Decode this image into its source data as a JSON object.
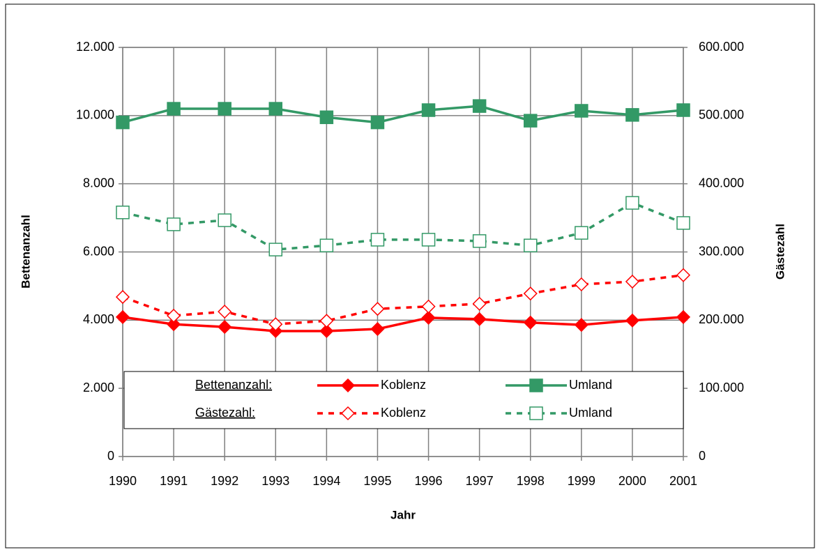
{
  "chart_data": {
    "type": "line",
    "categories": [
      "1990",
      "1991",
      "1992",
      "1993",
      "1994",
      "1995",
      "1996",
      "1997",
      "1998",
      "1999",
      "2000",
      "2001"
    ],
    "xlabel": "Jahr",
    "ylabel": "Bettenanzahl",
    "y2label": "Gästezahl",
    "ylim": [
      0,
      12000
    ],
    "yticks": [
      0,
      {
        "value": 2000,
        "label": "2.000"
      },
      {
        "value": 4000,
        "label": "4.000"
      },
      {
        "value": 6000,
        "label": "6.000"
      },
      {
        "value": 8000,
        "label": "8.000"
      },
      {
        "value": 10000,
        "label": "10.000"
      },
      {
        "value": 12000,
        "label": "12.000"
      }
    ],
    "y2lim": [
      0,
      600000
    ],
    "y2ticks": [
      0,
      {
        "value": 100000,
        "label": "100.000"
      },
      {
        "value": 200000,
        "label": "200.000"
      },
      {
        "value": 300000,
        "label": "300.000"
      },
      {
        "value": 400000,
        "label": "400.000"
      },
      {
        "value": 500000,
        "label": "500.000"
      },
      {
        "value": 600000,
        "label": "600.000"
      }
    ],
    "grid": true,
    "legend_groups": [
      "Bettenanzahl:",
      "Gästezahl:"
    ],
    "series": [
      {
        "name": "Koblenz",
        "color": "#ff0000",
        "marker": "diamond",
        "filled": true,
        "dashed": false,
        "axis": "y",
        "values": [
          4090,
          3880,
          3800,
          3680,
          3680,
          3740,
          4070,
          4030,
          3930,
          3860,
          3990,
          4090
        ]
      },
      {
        "name": "Umland",
        "color": "#339966",
        "marker": "square",
        "filled": true,
        "dashed": false,
        "axis": "y",
        "values": [
          9800,
          10200,
          10200,
          10200,
          9950,
          9800,
          10160,
          10280,
          9850,
          10140,
          10020,
          10160
        ]
      },
      {
        "name": "Koblenz",
        "color": "#ff0000",
        "marker": "diamond",
        "filled": false,
        "dashed": true,
        "axis": "y2",
        "values": [
          234000,
          206500,
          212500,
          194000,
          199000,
          216500,
          220000,
          224000,
          239000,
          252500,
          256500,
          266000
        ]
      },
      {
        "name": "Umland",
        "color": "#339966",
        "marker": "square",
        "filled": false,
        "dashed": true,
        "axis": "y2",
        "values": [
          358000,
          340500,
          346500,
          303500,
          309500,
          318000,
          318000,
          316000,
          309500,
          328000,
          372000,
          342500
        ]
      }
    ]
  }
}
